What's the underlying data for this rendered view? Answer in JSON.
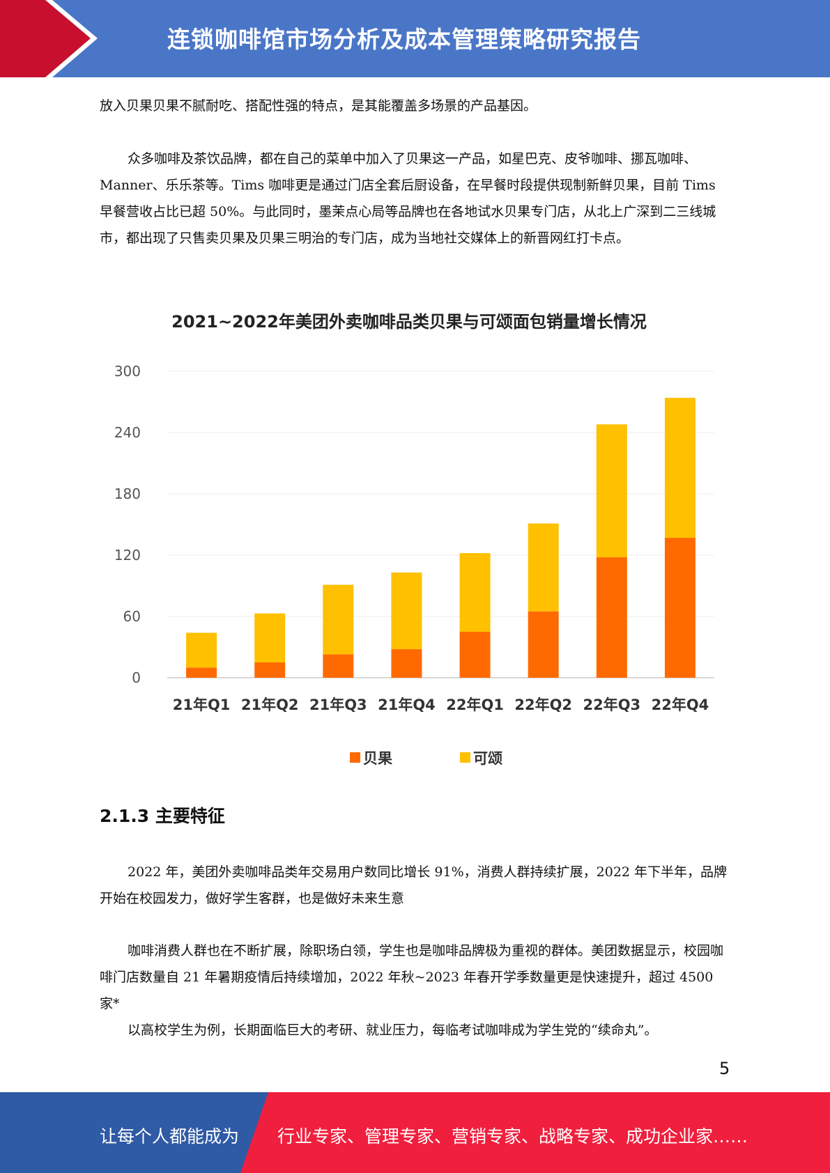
{
  "header": {
    "title": "连锁咖啡馆市场分析及成本管理策略研究报告",
    "colors": {
      "bar": "#4a76c8",
      "accent": "#c8102e"
    }
  },
  "paragraphs": {
    "p1": "放入贝果贝果不腻耐吃、搭配性强的特点，是其能覆盖多场景的产品基因。",
    "p2": "众多咖啡及茶饮品牌，都在自己的菜单中加入了贝果这一产品，如星巴克、皮爷咖啡、挪瓦咖啡、Manner、乐乐茶等。Tims 咖啡更是通过门店全套后厨设备，在早餐时段提供现制新鲜贝果，目前 Tims 早餐营收占比已超 50%。与此同时，墨茉点心局等品牌也在各地试水贝果专门店，从北上广深到二三线城市，都出现了只售卖贝果及贝果三明治的专门店，成为当地社交媒体上的新晋网红打卡点。",
    "p3": "2022 年，美团外卖咖啡品类年交易用户数同比增长 91%，消费人群持续扩展，2022 年下半年，品牌开始在校园发力，做好学生客群，也是做好未来生意",
    "p4": "咖啡消费人群也在不断扩展，除职场白领，学生也是咖啡品牌极为重视的群体。美团数据显示，校园咖啡门店数量自 21 年暑期疫情后持续增加，2022 年秋~2023 年春开学季数量更是快速提升，超过 4500 家*",
    "p5": "以高校学生为例，长期面临巨大的考研、就业压力，每临考试咖啡成为学生党的“续命丸”。"
  },
  "chart_data": {
    "type": "bar",
    "stacked": true,
    "title": "2021~2022年美团外卖咖啡品类贝果与可颂面包销量增长情况",
    "categories": [
      "21年Q1",
      "21年Q2",
      "21年Q3",
      "21年Q4",
      "22年Q1",
      "22年Q2",
      "22年Q3",
      "22年Q4"
    ],
    "series": [
      {
        "name": "贝果",
        "color": "#ff6a00",
        "values": [
          10,
          15,
          23,
          28,
          45,
          65,
          118,
          137
        ]
      },
      {
        "name": "可颂",
        "color": "#ffc000",
        "values": [
          34,
          48,
          68,
          75,
          77,
          86,
          130,
          137
        ]
      }
    ],
    "ylim": [
      0,
      300
    ],
    "yticks": [
      "0",
      "60",
      "120",
      "180",
      "240",
      "300"
    ],
    "xlabel": "",
    "ylabel": "",
    "grid": true,
    "legend": "bottom"
  },
  "section": {
    "title": "2.1.3 主要特征"
  },
  "page_number": "5",
  "footer": {
    "left": "让每个人都能成为",
    "right": "行业专家、管理专家、营销专家、战略专家、成功企业家……",
    "colors": {
      "left": "#2f5aa5",
      "right": "#f01f3d"
    }
  }
}
